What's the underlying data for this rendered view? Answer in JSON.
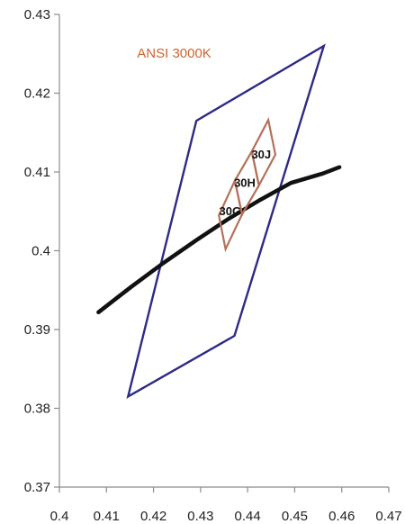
{
  "chart_data": {
    "type": "scatter",
    "title": "",
    "xlabel": "",
    "ylabel": "",
    "xlim": [
      0.4,
      0.47
    ],
    "ylim": [
      0.37,
      0.43
    ],
    "x_ticks": [
      "0.4",
      "0.41",
      "0.42",
      "0.43",
      "0.44",
      "0.45",
      "0.46",
      "0.47"
    ],
    "y_ticks": [
      "0.37",
      "0.38",
      "0.39",
      "0.4",
      "0.41",
      "0.42",
      "0.43"
    ],
    "grid": false,
    "legend": "none",
    "annotation": {
      "text": "ANSI 3000K",
      "color": "#d0622e",
      "x": 0.4165,
      "y": 0.4245
    },
    "series": [
      {
        "kind": "polygon",
        "color": "#2e2a85",
        "points": [
          [
            0.4146,
            0.3815
          ],
          [
            0.4291,
            0.4165
          ],
          [
            0.4562,
            0.426
          ],
          [
            0.4372,
            0.3892
          ]
        ]
      },
      {
        "kind": "polyline",
        "color": "#111111",
        "points": [
          [
            0.4083,
            0.3922
          ],
          [
            0.4152,
            0.3954
          ],
          [
            0.422,
            0.3984
          ],
          [
            0.429,
            0.4013
          ],
          [
            0.4358,
            0.404
          ],
          [
            0.4425,
            0.4064
          ],
          [
            0.4492,
            0.4086
          ],
          [
            0.456,
            0.4098
          ],
          [
            0.4595,
            0.4106
          ]
        ]
      }
    ],
    "regions": [
      {
        "label": "30G",
        "color": "#b5705a",
        "label_at": [
          0.4363,
          0.4051
        ],
        "points": [
          [
            0.4353,
            0.4002
          ],
          [
            0.4388,
            0.4046
          ],
          [
            0.4373,
            0.4089
          ],
          [
            0.4339,
            0.4045
          ]
        ]
      },
      {
        "label": "30H",
        "color": "#b5705a",
        "label_at": [
          0.4394,
          0.4087
        ],
        "points": [
          [
            0.4388,
            0.4046
          ],
          [
            0.4424,
            0.4083
          ],
          [
            0.4409,
            0.4126
          ],
          [
            0.4373,
            0.4089
          ]
        ]
      },
      {
        "label": "30J",
        "color": "#b5705a",
        "label_at": [
          0.4429,
          0.4123
        ],
        "points": [
          [
            0.4424,
            0.4083
          ],
          [
            0.4459,
            0.4122
          ],
          [
            0.4444,
            0.4166
          ],
          [
            0.4409,
            0.4126
          ]
        ]
      }
    ]
  }
}
